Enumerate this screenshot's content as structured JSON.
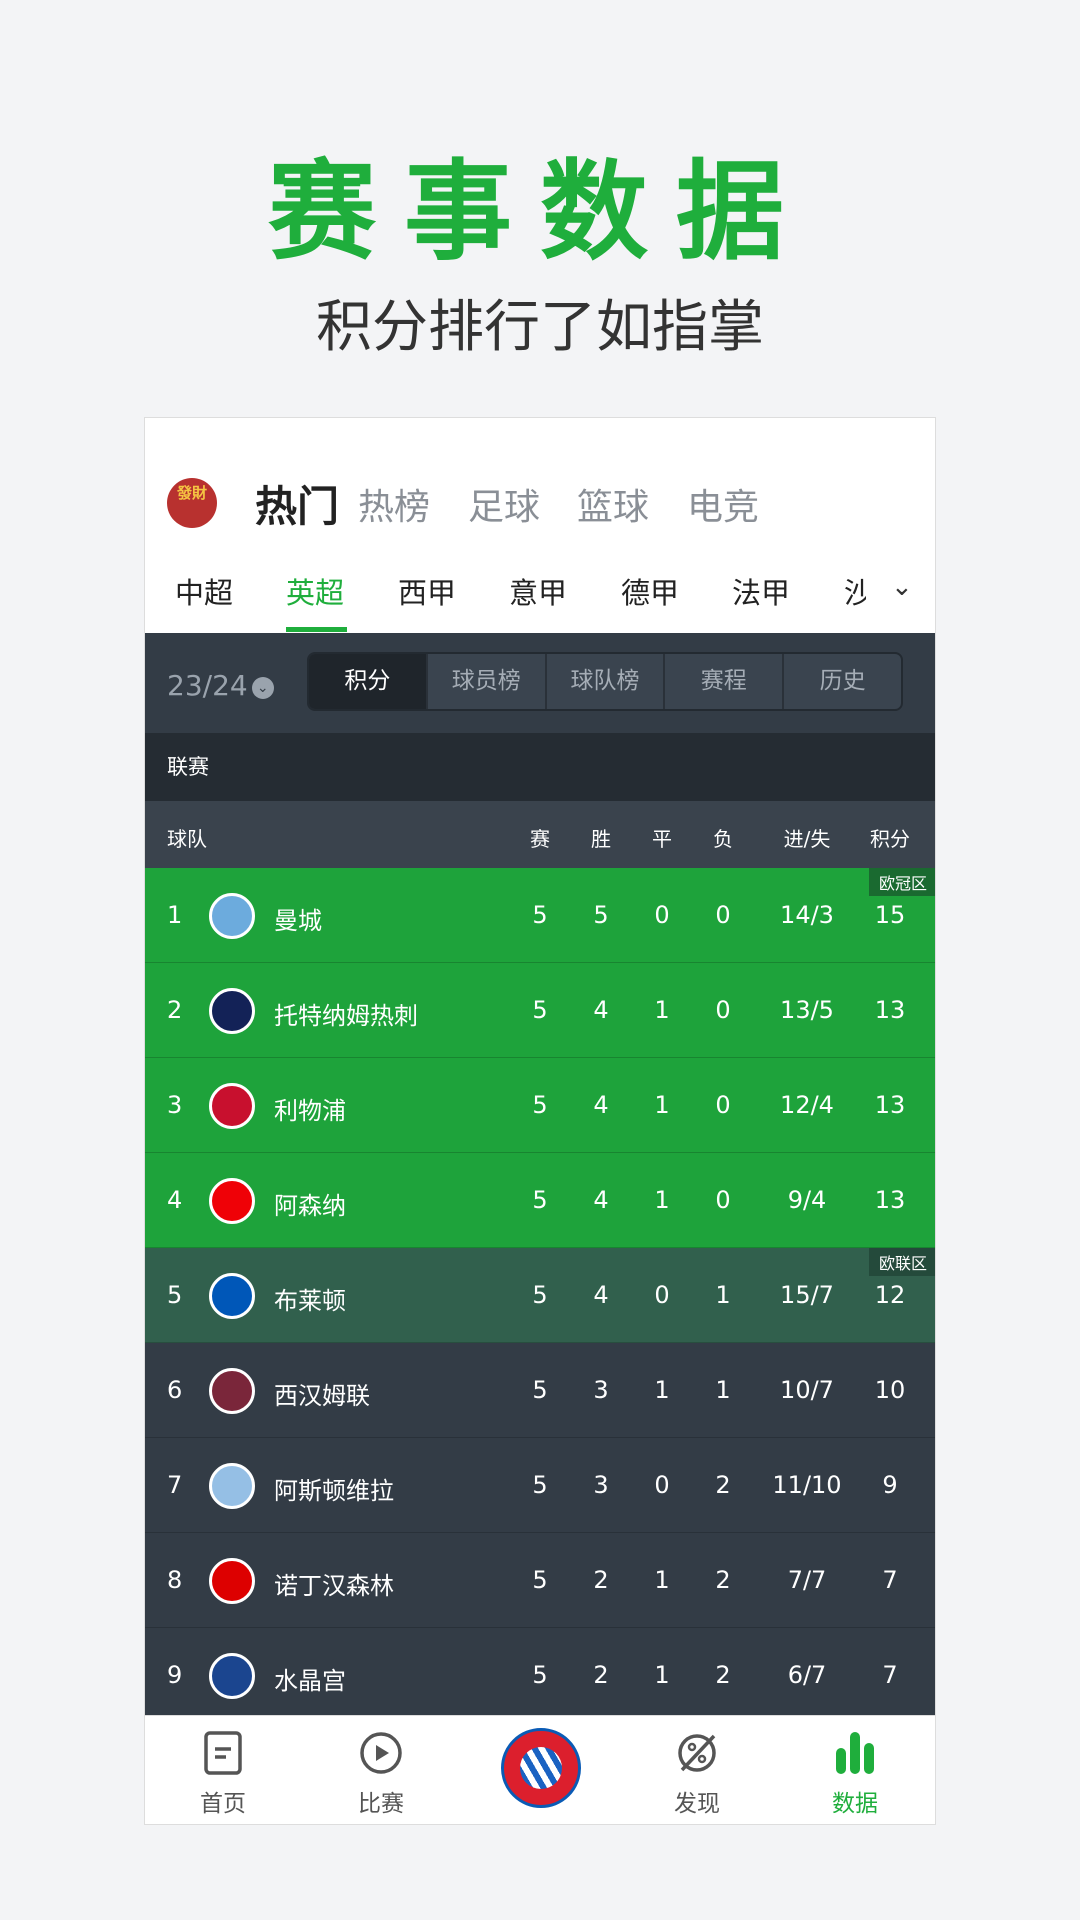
{
  "hero": {
    "title": "赛事数据",
    "subtitle": "积分排行了如指掌"
  },
  "app_logo_text": "發財",
  "categories": [
    "热门",
    "热榜",
    "足球",
    "篮球",
    "电竞"
  ],
  "leagues": [
    "中超",
    "英超",
    "西甲",
    "意甲",
    "德甲",
    "法甲",
    "沙"
  ],
  "season": "23/24",
  "segments": [
    "积分",
    "球员榜",
    "球队榜",
    "赛程",
    "历史"
  ],
  "section": "联赛",
  "columns": {
    "team": "球队",
    "played": "赛",
    "won": "胜",
    "drawn": "平",
    "lost": "负",
    "goals": "进/失",
    "points": "积分"
  },
  "zones": {
    "ucl": "欧冠区",
    "uel": "欧联区"
  },
  "colors": {
    "accent": "#1fae3c",
    "ucl_row": "#1ea33b",
    "uel_row": "#31604d",
    "row": "#333c46"
  },
  "rows": [
    {
      "rank": "1",
      "team": "曼城",
      "p": "5",
      "w": "5",
      "d": "0",
      "l": "0",
      "g": "14/3",
      "pts": "15",
      "crest": "#6cabdd"
    },
    {
      "rank": "2",
      "team": "托特纳姆热刺",
      "p": "5",
      "w": "4",
      "d": "1",
      "l": "0",
      "g": "13/5",
      "pts": "13",
      "crest": "#132257"
    },
    {
      "rank": "3",
      "team": "利物浦",
      "p": "5",
      "w": "4",
      "d": "1",
      "l": "0",
      "g": "12/4",
      "pts": "13",
      "crest": "#c8102e"
    },
    {
      "rank": "4",
      "team": "阿森纳",
      "p": "5",
      "w": "4",
      "d": "1",
      "l": "0",
      "g": "9/4",
      "pts": "13",
      "crest": "#ef0107"
    },
    {
      "rank": "5",
      "team": "布莱顿",
      "p": "5",
      "w": "4",
      "d": "0",
      "l": "1",
      "g": "15/7",
      "pts": "12",
      "crest": "#0057b8"
    },
    {
      "rank": "6",
      "team": "西汉姆联",
      "p": "5",
      "w": "3",
      "d": "1",
      "l": "1",
      "g": "10/7",
      "pts": "10",
      "crest": "#7a263a"
    },
    {
      "rank": "7",
      "team": "阿斯顿维拉",
      "p": "5",
      "w": "3",
      "d": "0",
      "l": "2",
      "g": "11/10",
      "pts": "9",
      "crest": "#95bfe5"
    },
    {
      "rank": "8",
      "team": "诺丁汉森林",
      "p": "5",
      "w": "2",
      "d": "1",
      "l": "2",
      "g": "7/7",
      "pts": "7",
      "crest": "#dd0000"
    },
    {
      "rank": "9",
      "team": "水晶宫",
      "p": "5",
      "w": "2",
      "d": "1",
      "l": "2",
      "g": "6/7",
      "pts": "7",
      "crest": "#1b458f"
    }
  ],
  "tabbar": [
    "首页",
    "比赛",
    "发现",
    "数据"
  ]
}
